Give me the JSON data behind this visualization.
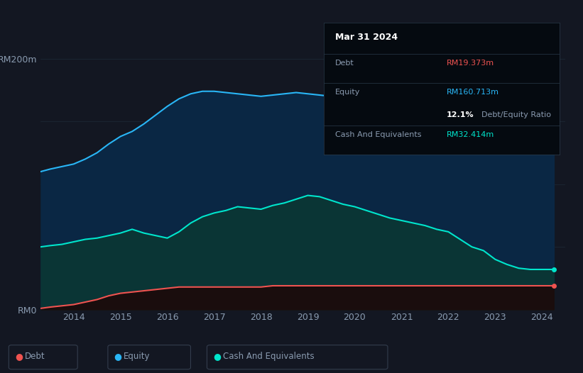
{
  "background_color": "#131722",
  "plot_bg_color": "#131722",
  "ylabel_200": "RM200m",
  "ylabel_0": "RM0",
  "x_years": [
    2013.3,
    2013.5,
    2013.75,
    2014.0,
    2014.25,
    2014.5,
    2014.75,
    2015.0,
    2015.25,
    2015.5,
    2015.75,
    2016.0,
    2016.25,
    2016.5,
    2016.75,
    2017.0,
    2017.25,
    2017.5,
    2017.75,
    2018.0,
    2018.25,
    2018.5,
    2018.75,
    2019.0,
    2019.25,
    2019.5,
    2019.75,
    2020.0,
    2020.25,
    2020.5,
    2020.75,
    2021.0,
    2021.25,
    2021.5,
    2021.75,
    2022.0,
    2022.25,
    2022.5,
    2022.75,
    2023.0,
    2023.25,
    2023.5,
    2023.75,
    2024.0,
    2024.25
  ],
  "equity": [
    110,
    112,
    114,
    116,
    120,
    125,
    132,
    138,
    142,
    148,
    155,
    162,
    168,
    172,
    174,
    174,
    173,
    172,
    171,
    170,
    171,
    172,
    173,
    172,
    171,
    170,
    168,
    167,
    166,
    165,
    163,
    162,
    161,
    160,
    158,
    156,
    153,
    150,
    147,
    145,
    142,
    137,
    132,
    161,
    161
  ],
  "cash": [
    50,
    51,
    52,
    54,
    56,
    57,
    59,
    61,
    64,
    61,
    59,
    57,
    62,
    69,
    74,
    77,
    79,
    82,
    81,
    80,
    83,
    85,
    88,
    91,
    90,
    87,
    84,
    82,
    79,
    76,
    73,
    71,
    69,
    67,
    64,
    62,
    56,
    50,
    47,
    40,
    36,
    33,
    32,
    32,
    32
  ],
  "debt": [
    1,
    2,
    3,
    4,
    6,
    8,
    11,
    13,
    14,
    15,
    16,
    17,
    18,
    18,
    18,
    18,
    18,
    18,
    18,
    18,
    19,
    19,
    19,
    19,
    19,
    19,
    19,
    19,
    19,
    19,
    19,
    19,
    19,
    19,
    19,
    19,
    19,
    19,
    19,
    19,
    19,
    19,
    19,
    19,
    19
  ],
  "equity_color": "#29b6f6",
  "equity_fill": "#0a2744",
  "cash_color": "#00e5cc",
  "cash_fill": "#0a3535",
  "debt_color": "#ef5350",
  "debt_fill": "#1a0d0d",
  "ylim": [
    0,
    220
  ],
  "xlim_start": 2013.3,
  "xlim_end": 2024.5,
  "x_tick_years": [
    2014,
    2015,
    2016,
    2017,
    2018,
    2019,
    2020,
    2021,
    2022,
    2023,
    2024
  ],
  "grid_color": "#1e2a38",
  "text_color": "#8a9bb0",
  "tooltip_bg": "#050a10",
  "tooltip_title": "Mar 31 2024",
  "tooltip_debt_label": "Debt",
  "tooltip_debt_value": "RM19.373m",
  "tooltip_equity_label": "Equity",
  "tooltip_equity_value": "RM160.713m",
  "tooltip_ratio_value": "12.1%",
  "tooltip_ratio_label": "Debt/Equity Ratio",
  "tooltip_cash_label": "Cash And Equivalents",
  "tooltip_cash_value": "RM32.414m",
  "legend_debt": "Debt",
  "legend_equity": "Equity",
  "legend_cash": "Cash And Equivalents"
}
